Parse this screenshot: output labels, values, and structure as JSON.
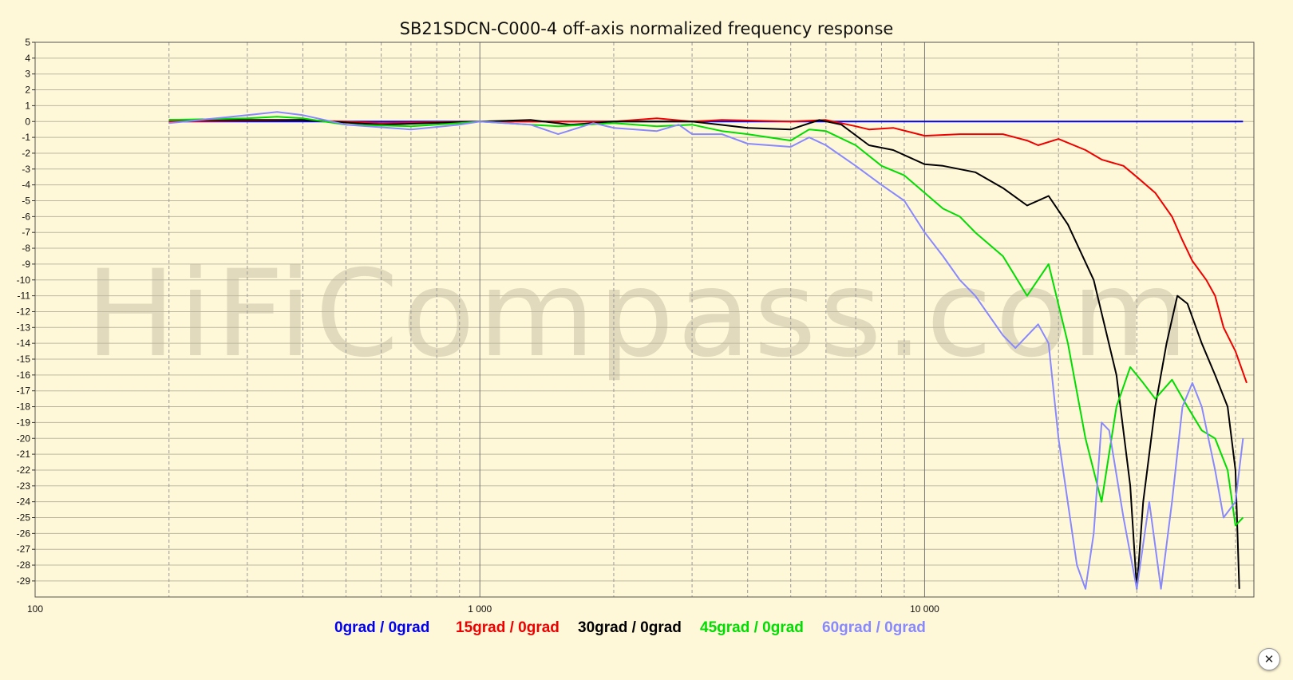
{
  "chart_data": {
    "type": "line",
    "title": "SB21SDCN-C000-4 off-axis normalized frequency response",
    "xscale": "log",
    "xlim": [
      100,
      55000
    ],
    "ylim": [
      -30,
      5
    ],
    "xticks": [
      {
        "value": 100,
        "label": "100"
      },
      {
        "value": 1000,
        "label": "1 000"
      },
      {
        "value": 10000,
        "label": "10 000"
      }
    ],
    "yticks": [
      5,
      4,
      3,
      2,
      1,
      0,
      -1,
      -2,
      -3,
      -4,
      -5,
      -6,
      -7,
      -8,
      -9,
      -10,
      -11,
      -12,
      -13,
      -14,
      -15,
      -16,
      -17,
      -18,
      -19,
      -20,
      -21,
      -22,
      -23,
      -24,
      -25,
      -26,
      -27,
      -28,
      -29
    ],
    "grid": true,
    "legend_position": "bottom",
    "watermark": "HiFiCompass.com",
    "series": [
      {
        "name": "0grad / 0grad",
        "color": "#0000ee",
        "points": [
          [
            200,
            0
          ],
          [
            52000,
            0
          ]
        ]
      },
      {
        "name": "15grad / 0grad",
        "color": "#ee0000",
        "points": [
          [
            200,
            0
          ],
          [
            400,
            0.1
          ],
          [
            600,
            -0.1
          ],
          [
            1000,
            0
          ],
          [
            2000,
            0
          ],
          [
            2500,
            0.2
          ],
          [
            3000,
            0
          ],
          [
            3500,
            0.1
          ],
          [
            5000,
            0
          ],
          [
            6000,
            0.1
          ],
          [
            7000,
            -0.3
          ],
          [
            7500,
            -0.5
          ],
          [
            8500,
            -0.4
          ],
          [
            10000,
            -0.9
          ],
          [
            12000,
            -0.8
          ],
          [
            15000,
            -0.8
          ],
          [
            17000,
            -1.2
          ],
          [
            18000,
            -1.5
          ],
          [
            20000,
            -1.1
          ],
          [
            23000,
            -1.8
          ],
          [
            25000,
            -2.4
          ],
          [
            28000,
            -2.8
          ],
          [
            30000,
            -3.5
          ],
          [
            33000,
            -4.5
          ],
          [
            36000,
            -6
          ],
          [
            38000,
            -7.5
          ],
          [
            40000,
            -8.8
          ],
          [
            43000,
            -10
          ],
          [
            45000,
            -11
          ],
          [
            47000,
            -13
          ],
          [
            50000,
            -14.5
          ],
          [
            53000,
            -16.5
          ]
        ]
      },
      {
        "name": "30grad / 0grad",
        "color": "#000000",
        "points": [
          [
            200,
            0.1
          ],
          [
            400,
            0.1
          ],
          [
            600,
            -0.2
          ],
          [
            1000,
            0
          ],
          [
            1300,
            0.1
          ],
          [
            1600,
            -0.2
          ],
          [
            2000,
            0
          ],
          [
            3000,
            0
          ],
          [
            4000,
            -0.4
          ],
          [
            5000,
            -0.5
          ],
          [
            5800,
            0.1
          ],
          [
            6500,
            -0.2
          ],
          [
            7500,
            -1.5
          ],
          [
            8500,
            -1.8
          ],
          [
            10000,
            -2.7
          ],
          [
            11000,
            -2.8
          ],
          [
            13000,
            -3.2
          ],
          [
            15000,
            -4.2
          ],
          [
            17000,
            -5.3
          ],
          [
            19000,
            -4.7
          ],
          [
            21000,
            -6.5
          ],
          [
            24000,
            -10
          ],
          [
            27000,
            -16
          ],
          [
            29000,
            -23
          ],
          [
            30000,
            -29.5
          ],
          [
            31000,
            -24
          ],
          [
            33000,
            -18
          ],
          [
            35000,
            -14
          ],
          [
            37000,
            -11
          ],
          [
            39000,
            -11.5
          ],
          [
            42000,
            -14
          ],
          [
            45000,
            -16
          ],
          [
            48000,
            -18
          ],
          [
            50000,
            -22
          ],
          [
            51000,
            -29.5
          ]
        ]
      },
      {
        "name": "45grad / 0grad",
        "color": "#00dd00",
        "points": [
          [
            200,
            0.1
          ],
          [
            300,
            0.2
          ],
          [
            350,
            0.3
          ],
          [
            400,
            0.2
          ],
          [
            500,
            -0.2
          ],
          [
            700,
            -0.3
          ],
          [
            900,
            -0.1
          ],
          [
            1000,
            0
          ],
          [
            1500,
            -0.3
          ],
          [
            2000,
            -0.1
          ],
          [
            2500,
            -0.3
          ],
          [
            3000,
            -0.2
          ],
          [
            3500,
            -0.6
          ],
          [
            4000,
            -0.8
          ],
          [
            5000,
            -1.2
          ],
          [
            5500,
            -0.5
          ],
          [
            6000,
            -0.6
          ],
          [
            7000,
            -1.5
          ],
          [
            8000,
            -2.8
          ],
          [
            9000,
            -3.4
          ],
          [
            10000,
            -4.5
          ],
          [
            11000,
            -5.5
          ],
          [
            12000,
            -6
          ],
          [
            13000,
            -7
          ],
          [
            15000,
            -8.5
          ],
          [
            17000,
            -11
          ],
          [
            19000,
            -9
          ],
          [
            21000,
            -14
          ],
          [
            23000,
            -20
          ],
          [
            25000,
            -24
          ],
          [
            27000,
            -18
          ],
          [
            29000,
            -15.5
          ],
          [
            31000,
            -16.5
          ],
          [
            33000,
            -17.5
          ],
          [
            36000,
            -16.3
          ],
          [
            39000,
            -18
          ],
          [
            42000,
            -19.5
          ],
          [
            45000,
            -20
          ],
          [
            48000,
            -22
          ],
          [
            50000,
            -25.5
          ],
          [
            52000,
            -25
          ]
        ]
      },
      {
        "name": "60grad / 0grad",
        "color": "#8888ff",
        "points": [
          [
            200,
            -0.1
          ],
          [
            300,
            0.4
          ],
          [
            350,
            0.6
          ],
          [
            400,
            0.4
          ],
          [
            500,
            -0.2
          ],
          [
            700,
            -0.5
          ],
          [
            900,
            -0.2
          ],
          [
            1000,
            0
          ],
          [
            1300,
            -0.2
          ],
          [
            1500,
            -0.8
          ],
          [
            1800,
            -0.1
          ],
          [
            2000,
            -0.4
          ],
          [
            2500,
            -0.6
          ],
          [
            2800,
            -0.2
          ],
          [
            3000,
            -0.8
          ],
          [
            3500,
            -0.8
          ],
          [
            4000,
            -1.4
          ],
          [
            5000,
            -1.6
          ],
          [
            5500,
            -1
          ],
          [
            6000,
            -1.5
          ],
          [
            7000,
            -2.8
          ],
          [
            8000,
            -4
          ],
          [
            9000,
            -5
          ],
          [
            10000,
            -7
          ],
          [
            11000,
            -8.5
          ],
          [
            12000,
            -10
          ],
          [
            13000,
            -11
          ],
          [
            15000,
            -13.5
          ],
          [
            16000,
            -14.3
          ],
          [
            18000,
            -12.8
          ],
          [
            19000,
            -14
          ],
          [
            20000,
            -20
          ],
          [
            22000,
            -28
          ],
          [
            23000,
            -29.5
          ],
          [
            24000,
            -26
          ],
          [
            25000,
            -19
          ],
          [
            26000,
            -19.5
          ],
          [
            28000,
            -25
          ],
          [
            30000,
            -29.5
          ],
          [
            32000,
            -24
          ],
          [
            34000,
            -29.5
          ],
          [
            36000,
            -24
          ],
          [
            38000,
            -18
          ],
          [
            40000,
            -16.5
          ],
          [
            42000,
            -18
          ],
          [
            45000,
            -22
          ],
          [
            47000,
            -25
          ],
          [
            50000,
            -24
          ],
          [
            52000,
            -20
          ]
        ]
      }
    ]
  },
  "ui": {
    "close_glyph": "✕",
    "close_icon": "close-icon"
  }
}
